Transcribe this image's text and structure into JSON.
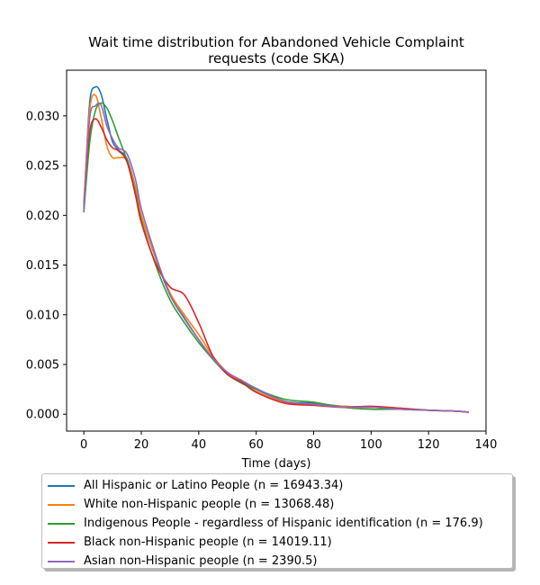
{
  "chart_data": {
    "type": "line",
    "title": "Wait time distribution  for Abandoned Vehicle Complaint requests (code SKA)",
    "title_lines": [
      "Wait time distribution  for Abandoned Vehicle Complaint",
      "requests (code SKA)"
    ],
    "xlabel": "Time (days)",
    "ylabel": "",
    "xlim": [
      -6,
      140
    ],
    "ylim": [
      -0.0017,
      0.0346
    ],
    "xticks": [
      0,
      20,
      40,
      60,
      80,
      100,
      120,
      140
    ],
    "yticks": [
      0.0,
      0.005,
      0.01,
      0.015,
      0.02,
      0.025,
      0.03
    ],
    "ytick_labels": [
      "0.000",
      "0.005",
      "0.010",
      "0.015",
      "0.020",
      "0.025",
      "0.030"
    ],
    "grid": false,
    "legend_position": "below",
    "series": [
      {
        "name": "All Hispanic or Latino People (n = 16943.34)",
        "color": "#1f77b4",
        "x": [
          0,
          2,
          4,
          6,
          8,
          10,
          12,
          15,
          18,
          20,
          25,
          30,
          35,
          40,
          45,
          50,
          55,
          60,
          70,
          80,
          90,
          100,
          110,
          120,
          130,
          134
        ],
        "y": [
          0.0207,
          0.0312,
          0.0329,
          0.0322,
          0.0297,
          0.0274,
          0.0266,
          0.0257,
          0.0228,
          0.02,
          0.0157,
          0.012,
          0.0097,
          0.0075,
          0.0055,
          0.0042,
          0.0033,
          0.0025,
          0.0013,
          0.0011,
          0.0008,
          0.0007,
          0.0005,
          0.0004,
          0.0003,
          0.0002
        ]
      },
      {
        "name": "White non-Hispanic people (n = 13068.48)",
        "color": "#ff7f0e",
        "x": [
          0,
          2,
          4,
          6,
          8,
          10,
          12,
          15,
          18,
          20,
          25,
          30,
          35,
          40,
          45,
          50,
          55,
          60,
          70,
          80,
          90,
          100,
          110,
          120,
          130,
          134
        ],
        "y": [
          0.0212,
          0.0305,
          0.0321,
          0.0299,
          0.027,
          0.0258,
          0.0258,
          0.0255,
          0.0227,
          0.02,
          0.0158,
          0.0122,
          0.01,
          0.008,
          0.0058,
          0.0042,
          0.0032,
          0.0023,
          0.0012,
          0.001,
          0.0008,
          0.0007,
          0.0006,
          0.0004,
          0.0003,
          0.0002
        ]
      },
      {
        "name": "Indigenous People - regardless of Hispanic identification (n = 176.9)",
        "color": "#2ca02c",
        "x": [
          0,
          2,
          4,
          6,
          8,
          10,
          12,
          15,
          18,
          20,
          25,
          30,
          35,
          40,
          45,
          50,
          55,
          60,
          70,
          80,
          90,
          100,
          110,
          120,
          130,
          134
        ],
        "y": [
          0.0203,
          0.0272,
          0.0305,
          0.0313,
          0.0308,
          0.0295,
          0.0279,
          0.0255,
          0.0222,
          0.0195,
          0.015,
          0.0115,
          0.0092,
          0.0072,
          0.0055,
          0.004,
          0.0031,
          0.0025,
          0.0015,
          0.0012,
          0.0007,
          0.0005,
          0.0005,
          0.0004,
          0.0003,
          0.0002
        ]
      },
      {
        "name": "Black non-Hispanic people (n = 14019.11)",
        "color": "#d62728",
        "x": [
          0,
          2,
          4,
          6,
          8,
          10,
          12,
          15,
          18,
          20,
          25,
          30,
          35,
          40,
          45,
          50,
          55,
          60,
          70,
          80,
          90,
          100,
          110,
          120,
          130,
          134
        ],
        "y": [
          0.021,
          0.0283,
          0.0297,
          0.0289,
          0.0276,
          0.0268,
          0.0265,
          0.0254,
          0.022,
          0.0193,
          0.0152,
          0.0128,
          0.012,
          0.0092,
          0.0058,
          0.004,
          0.0032,
          0.0022,
          0.0011,
          0.0009,
          0.0007,
          0.0008,
          0.0006,
          0.0004,
          0.0003,
          0.0002
        ]
      },
      {
        "name": "Asian non-Hispanic people (n = 2390.5)",
        "color": "#9467bd",
        "x": [
          0,
          2,
          4,
          6,
          8,
          10,
          12,
          15,
          18,
          20,
          25,
          30,
          35,
          40,
          45,
          50,
          55,
          60,
          70,
          80,
          90,
          100,
          110,
          120,
          130,
          134
        ],
        "y": [
          0.0205,
          0.0297,
          0.031,
          0.0311,
          0.029,
          0.0277,
          0.0268,
          0.0262,
          0.0236,
          0.0207,
          0.016,
          0.012,
          0.0096,
          0.0075,
          0.0056,
          0.0042,
          0.0034,
          0.0026,
          0.0013,
          0.001,
          0.0007,
          0.0007,
          0.0005,
          0.0004,
          0.0003,
          0.0002
        ]
      }
    ]
  }
}
